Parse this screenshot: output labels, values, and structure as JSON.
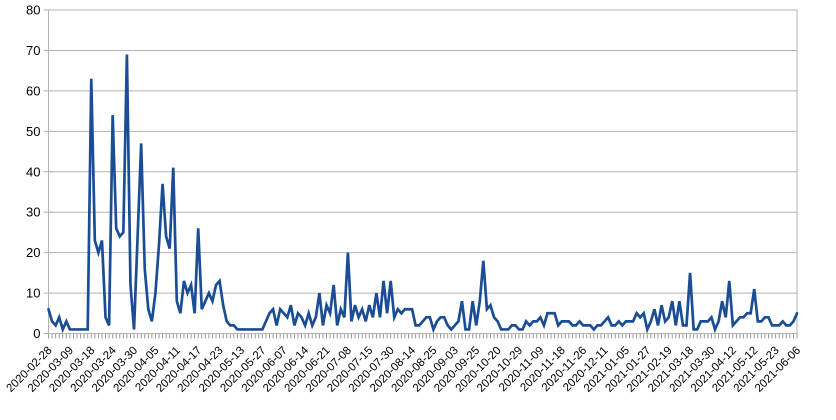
{
  "chart_data": {
    "type": "line",
    "title": "",
    "xlabel": "",
    "ylabel": "",
    "legend": "none",
    "grid": "horizontal",
    "ylim": [
      0,
      80
    ],
    "y_ticks": [
      0,
      10,
      20,
      30,
      40,
      50,
      60,
      70,
      80
    ],
    "x_label_every": 6,
    "n_points": 211,
    "x_tick_labels": [
      "2020-02-28",
      "2020-03-09",
      "2020-03-18",
      "2020-03-24",
      "2020-03-30",
      "2020-04-05",
      "2020-04-11",
      "2020-04-17",
      "2020-04-23",
      "2020-05-13",
      "2020-05-27",
      "2020-06-07",
      "2020-06-14",
      "2020-06-21",
      "2020-07-08",
      "2020-07-15",
      "2020-07-30",
      "2020-08-14",
      "2020-08-25",
      "2020-09-03",
      "2020-09-25",
      "2020-10-20",
      "2020-10-29",
      "2020-11-09",
      "2020-11-18",
      "2020-11-26",
      "2020-12-11",
      "2021-01-05",
      "2021-01-27",
      "2021-02-19",
      "2021-03-18",
      "2021-03-30",
      "2021-04-12",
      "2021-05-12",
      "2021-05-23",
      "2021-06-06"
    ],
    "values": [
      6,
      3,
      2,
      4,
      1,
      3,
      1,
      1,
      1,
      1,
      1,
      1,
      63,
      23,
      20,
      23,
      4,
      2,
      54,
      26,
      24,
      25,
      69,
      12,
      1,
      24,
      47,
      16,
      6,
      3,
      10,
      22,
      37,
      24,
      21,
      41,
      8,
      5,
      13,
      10,
      12,
      5,
      26,
      6,
      8,
      10,
      8,
      12,
      13,
      7,
      3,
      2,
      2,
      1,
      1,
      1,
      1,
      1,
      1,
      1,
      1,
      3,
      5,
      6,
      2,
      6,
      5,
      4,
      7,
      2,
      5,
      4,
      2,
      5,
      2,
      4,
      10,
      2,
      7,
      5,
      12,
      2,
      6,
      4,
      20,
      3,
      7,
      4,
      6,
      3,
      7,
      4,
      10,
      4,
      13,
      5,
      13,
      4,
      6,
      5,
      6,
      6,
      6,
      2,
      2,
      3,
      4,
      4,
      1,
      3,
      4,
      4,
      2,
      1,
      2,
      3,
      8,
      1,
      1,
      8,
      2,
      8,
      18,
      6,
      7,
      4,
      3,
      1,
      1,
      1,
      2,
      2,
      1,
      1,
      3,
      2,
      3,
      3,
      4,
      2,
      5,
      5,
      5,
      2,
      3,
      3,
      3,
      2,
      2,
      3,
      2,
      2,
      2,
      1,
      2,
      2,
      3,
      4,
      2,
      2,
      3,
      2,
      3,
      3,
      3,
      5,
      4,
      5,
      1,
      3,
      6,
      2,
      7,
      3,
      4,
      8,
      2,
      8,
      2,
      2,
      15,
      1,
      1,
      3,
      3,
      3,
      4,
      1,
      3,
      8,
      4,
      13,
      2,
      3,
      4,
      4,
      5,
      5,
      11,
      3,
      3,
      4,
      4,
      2,
      2,
      2,
      3,
      2,
      2,
      3,
      5
    ],
    "colors": {
      "series": "#1a4d94",
      "grid": "#b3b3b3",
      "axis": "#b3b3b3",
      "minor_tick": "#999999",
      "label": "#000000",
      "background": "#ffffff"
    }
  }
}
